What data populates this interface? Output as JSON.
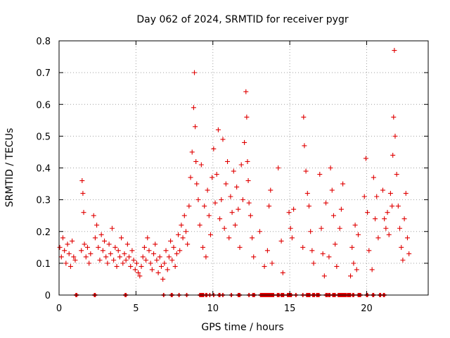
{
  "chart_data": {
    "type": "scatter",
    "title": "Day 062 of 2024, SRMTID for receiver pygr",
    "xlabel": "GPS time / hours",
    "ylabel": "SRMTID / TECUs",
    "xlim": [
      0,
      24
    ],
    "ylim": [
      0,
      0.8
    ],
    "xticks": [
      0,
      5,
      10,
      15,
      20
    ],
    "xtick_labels": [
      "0",
      "5",
      "10",
      "15",
      "20"
    ],
    "yticks": [
      0,
      0.1,
      0.2,
      0.3,
      0.4,
      0.5,
      0.6,
      0.7,
      0.8
    ],
    "ytick_labels": [
      "0",
      "0.1",
      "0.2",
      "0.3",
      "0.4",
      "0.5",
      "0.6",
      "0.7",
      "0.8"
    ],
    "grid": true,
    "marker": "+",
    "color": "#e00000",
    "series": [
      {
        "name": "SRMTID",
        "x": [
          0.05,
          0.15,
          0.25,
          0.35,
          0.45,
          0.55,
          0.65,
          0.75,
          0.85,
          0.95,
          1.05,
          1.45,
          1.5,
          1.55,
          1.6,
          1.65,
          1.75,
          1.85,
          1.95,
          2.05,
          2.25,
          2.35,
          2.45,
          2.55,
          2.65,
          2.75,
          2.85,
          2.95,
          3.05,
          3.15,
          3.25,
          3.35,
          3.45,
          3.55,
          3.65,
          3.75,
          3.85,
          3.95,
          4.05,
          4.15,
          4.25,
          4.35,
          4.45,
          4.55,
          4.65,
          4.75,
          4.85,
          4.95,
          5.05,
          5.15,
          5.25,
          5.35,
          5.45,
          5.55,
          5.65,
          5.75,
          5.85,
          5.95,
          6.05,
          6.15,
          6.25,
          6.35,
          6.45,
          6.55,
          6.65,
          6.75,
          6.85,
          6.95,
          7.05,
          7.15,
          7.25,
          7.35,
          7.45,
          7.55,
          7.65,
          7.75,
          7.85,
          7.95,
          8.05,
          8.15,
          8.25,
          8.35,
          8.45,
          8.55,
          8.65,
          8.75,
          8.8,
          8.85,
          8.9,
          8.95,
          9.05,
          9.15,
          9.25,
          9.35,
          9.45,
          9.55,
          9.65,
          9.75,
          9.85,
          9.95,
          10.05,
          10.15,
          10.25,
          10.35,
          10.45,
          10.55,
          10.65,
          10.75,
          10.85,
          10.95,
          11.05,
          11.15,
          11.25,
          11.35,
          11.45,
          11.55,
          11.65,
          11.75,
          11.85,
          11.95,
          12.05,
          12.15,
          12.2,
          12.25,
          12.3,
          12.35,
          12.45,
          12.55,
          12.65,
          13.05,
          13.35,
          13.55,
          13.65,
          13.75,
          13.85,
          14.25,
          14.45,
          14.55,
          14.95,
          15.05,
          15.15,
          15.25,
          15.85,
          15.9,
          15.95,
          16.05,
          16.15,
          16.25,
          16.35,
          16.45,
          16.55,
          16.95,
          17.05,
          17.15,
          17.25,
          17.35,
          17.55,
          17.65,
          17.75,
          17.85,
          17.95,
          18.05,
          18.25,
          18.35,
          18.45,
          18.95,
          19.05,
          19.15,
          19.25,
          19.35,
          19.45,
          19.85,
          19.95,
          20.05,
          20.15,
          20.35,
          20.45,
          20.55,
          20.65,
          20.75,
          21.05,
          21.15,
          21.25,
          21.35,
          21.45,
          21.55,
          21.65,
          21.7,
          21.75,
          21.8,
          21.85,
          21.95,
          22.05,
          22.15,
          22.25,
          22.35,
          22.45,
          22.55,
          22.65,
          22.75
        ],
        "y": [
          0.15,
          0.12,
          0.18,
          0.14,
          0.1,
          0.16,
          0.13,
          0.09,
          0.17,
          0.12,
          0.11,
          0.14,
          0.36,
          0.32,
          0.26,
          0.16,
          0.12,
          0.15,
          0.1,
          0.13,
          0.25,
          0.18,
          0.22,
          0.15,
          0.11,
          0.19,
          0.14,
          0.17,
          0.12,
          0.1,
          0.16,
          0.13,
          0.21,
          0.11,
          0.15,
          0.09,
          0.14,
          0.12,
          0.18,
          0.1,
          0.13,
          0.11,
          0.16,
          0.12,
          0.09,
          0.14,
          0.11,
          0.08,
          0.1,
          0.07,
          0.06,
          0.09,
          0.12,
          0.15,
          0.11,
          0.18,
          0.14,
          0.1,
          0.08,
          0.13,
          0.16,
          0.11,
          0.07,
          0.12,
          0.09,
          0.05,
          0.1,
          0.14,
          0.08,
          0.12,
          0.17,
          0.11,
          0.15,
          0.09,
          0.13,
          0.19,
          0.14,
          0.22,
          0.18,
          0.25,
          0.2,
          0.16,
          0.28,
          0.37,
          0.45,
          0.59,
          0.7,
          0.53,
          0.42,
          0.35,
          0.3,
          0.22,
          0.41,
          0.15,
          0.28,
          0.12,
          0.33,
          0.25,
          0.19,
          0.37,
          0.46,
          0.29,
          0.38,
          0.52,
          0.24,
          0.3,
          0.49,
          0.21,
          0.35,
          0.42,
          0.18,
          0.31,
          0.26,
          0.39,
          0.22,
          0.34,
          0.27,
          0.15,
          0.41,
          0.3,
          0.48,
          0.64,
          0.56,
          0.42,
          0.36,
          0.29,
          0.25,
          0.18,
          0.12,
          0.2,
          0.09,
          0.14,
          0.28,
          0.33,
          0.1,
          0.4,
          0.17,
          0.07,
          0.26,
          0.21,
          0.18,
          0.27,
          0.15,
          0.56,
          0.47,
          0.39,
          0.32,
          0.28,
          0.2,
          0.14,
          0.1,
          0.38,
          0.21,
          0.13,
          0.06,
          0.29,
          0.12,
          0.4,
          0.33,
          0.25,
          0.16,
          0.09,
          0.21,
          0.27,
          0.35,
          0.06,
          0.15,
          0.1,
          0.22,
          0.08,
          0.19,
          0.31,
          0.43,
          0.26,
          0.14,
          0.08,
          0.37,
          0.24,
          0.31,
          0.18,
          0.33,
          0.24,
          0.21,
          0.26,
          0.19,
          0.32,
          0.28,
          0.44,
          0.56,
          0.77,
          0.5,
          0.38,
          0.28,
          0.21,
          0.15,
          0.11,
          0.24,
          0.32,
          0.18,
          0.13
        ]
      }
    ],
    "zero_x": [
      1.1,
      1.15,
      2.3,
      2.35,
      4.3,
      4.35,
      6.8,
      7.3,
      7.35,
      7.8,
      8.3,
      9.15,
      9.2,
      9.25,
      9.3,
      9.35,
      9.4,
      9.55,
      9.6,
      9.8,
      10.05,
      10.4,
      10.45,
      10.65,
      11.2,
      11.65,
      11.7,
      11.75,
      12.35,
      12.6,
      12.65,
      12.7,
      13.1,
      13.15,
      13.2,
      13.25,
      13.3,
      13.35,
      13.4,
      13.45,
      13.5,
      13.55,
      13.6,
      13.65,
      13.7,
      13.75,
      13.8,
      13.85,
      13.9,
      13.95,
      14.2,
      14.25,
      14.3,
      14.45,
      14.5,
      14.55,
      14.6,
      14.85,
      14.9,
      14.95,
      15.0,
      15.05,
      15.1,
      15.4,
      15.85,
      16.1,
      16.15,
      16.2,
      16.25,
      16.3,
      16.5,
      16.55,
      16.6,
      16.75,
      16.8,
      16.85,
      16.9,
      17.35,
      17.4,
      17.45,
      17.55,
      17.6,
      17.8,
      17.85,
      17.9,
      17.95,
      18.15,
      18.2,
      18.25,
      18.3,
      18.35,
      18.4,
      18.45,
      18.5,
      18.55,
      18.6,
      18.65,
      18.75,
      18.8,
      18.85,
      18.9,
      18.95,
      19.1,
      19.15,
      19.45,
      19.5,
      19.55,
      19.6,
      20.0,
      20.05,
      20.4,
      20.45,
      20.85,
      20.9,
      21.1,
      21.15
    ]
  }
}
